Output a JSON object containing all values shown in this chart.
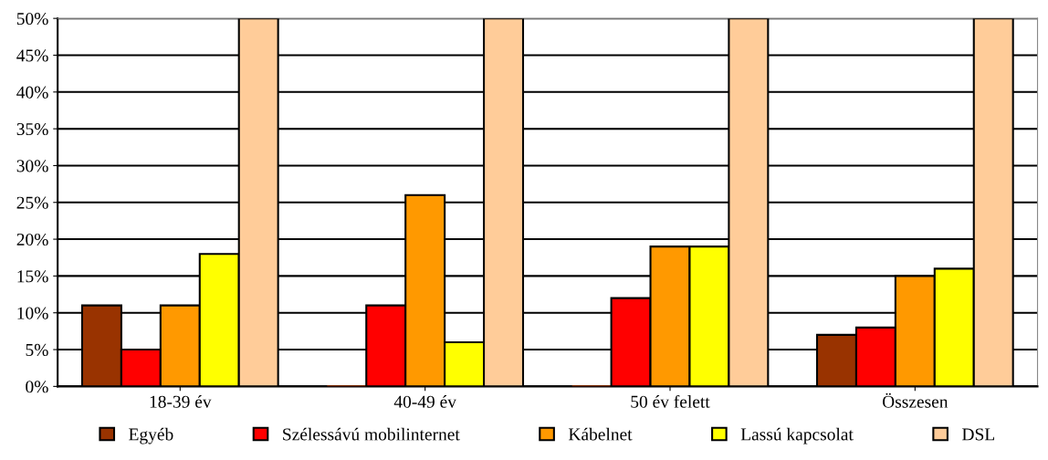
{
  "chart_data": {
    "type": "bar",
    "categories": [
      "18-39 év",
      "40-49 év",
      "50 év felett",
      "Összesen"
    ],
    "series": [
      {
        "name": "Egyéb",
        "color": "#993300",
        "values": [
          11,
          0,
          0,
          7
        ]
      },
      {
        "name": "Szélessávú mobilinternet",
        "color": "#ff0000",
        "values": [
          5,
          11,
          12,
          8
        ]
      },
      {
        "name": "Kábelnet",
        "color": "#ff9900",
        "values": [
          11,
          26,
          19,
          15
        ]
      },
      {
        "name": "Lassú kapcsolat",
        "color": "#ffff00",
        "values": [
          18,
          6,
          19,
          16
        ]
      },
      {
        "name": "DSL",
        "color": "#ffcc99",
        "values": [
          50,
          50,
          50,
          50
        ]
      }
    ],
    "ylim": [
      0,
      50
    ],
    "yticks": [
      {
        "value": 0,
        "label": "0%"
      },
      {
        "value": 5,
        "label": "5%"
      },
      {
        "value": 10,
        "label": "10%"
      },
      {
        "value": 15,
        "label": "15%"
      },
      {
        "value": 20,
        "label": "20%"
      },
      {
        "value": 25,
        "label": "25%"
      },
      {
        "value": 30,
        "label": "30%"
      },
      {
        "value": 35,
        "label": "35%"
      },
      {
        "value": 40,
        "label": "40%"
      },
      {
        "value": 45,
        "label": "45%"
      },
      {
        "value": 50,
        "label": "50%"
      }
    ],
    "grid": "y",
    "legend": "bottom"
  }
}
